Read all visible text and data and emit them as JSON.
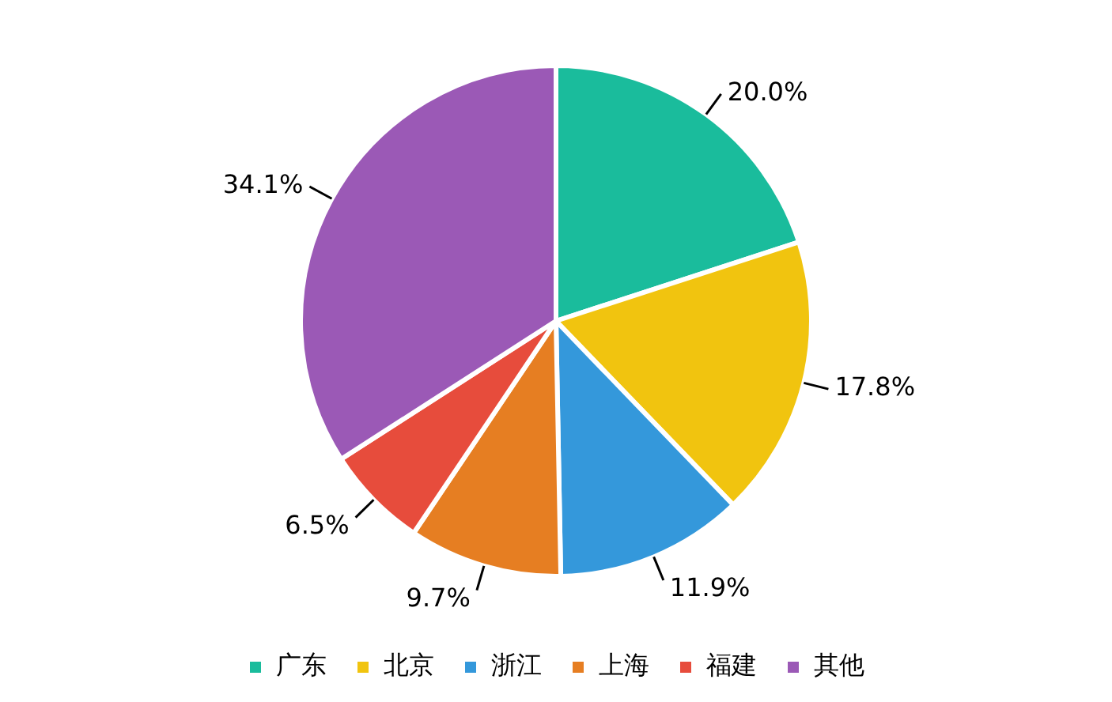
{
  "chart_data": {
    "type": "pie",
    "categories": [
      "广东",
      "北京",
      "浙江",
      "上海",
      "福建",
      "其他"
    ],
    "values": [
      20.0,
      17.8,
      11.9,
      9.7,
      6.5,
      34.1
    ],
    "colors": [
      "#1abc9c",
      "#f1c40f",
      "#3498db",
      "#e67e22",
      "#e74c3c",
      "#9b59b6"
    ],
    "value_labels": [
      "20.0%",
      "17.8%",
      "11.9%",
      "9.7%",
      "6.5%",
      "34.1%"
    ],
    "legend": "bottom"
  }
}
